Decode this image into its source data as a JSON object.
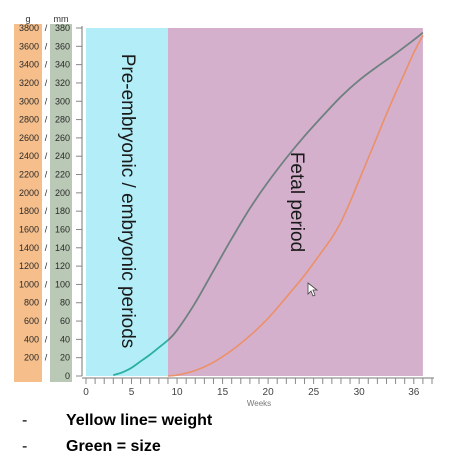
{
  "chart_data": {
    "type": "line",
    "units": {
      "weight": "g",
      "size": "mm"
    },
    "y_weight": {
      "ticks": [
        3800,
        3600,
        3400,
        3200,
        3000,
        2800,
        2600,
        2400,
        2200,
        2000,
        1800,
        1600,
        1400,
        1200,
        1000,
        800,
        600,
        400,
        200
      ],
      "ylim": [
        0,
        3800
      ]
    },
    "y_size": {
      "ticks": [
        380,
        360,
        340,
        320,
        300,
        280,
        260,
        240,
        220,
        200,
        180,
        160,
        140,
        120,
        100,
        80,
        60,
        40,
        20,
        0
      ],
      "ylim": [
        0,
        380
      ]
    },
    "x": {
      "ticks": [
        0,
        5,
        10,
        15,
        20,
        25,
        30,
        36
      ],
      "xlim": [
        0,
        38
      ],
      "label": "Weeks"
    },
    "periods": [
      {
        "label": "Pre-embryonic / embryonic periods",
        "start": 0,
        "end": 9,
        "color": "#b3eef8"
      },
      {
        "label": "Fetal period",
        "start": 9,
        "end": 37,
        "color": "#d4b0cc"
      }
    ],
    "series": [
      {
        "id": "size",
        "axis": "size",
        "color_early": "#2ab0a0",
        "color": "#6f8080",
        "x": [
          3,
          4,
          5,
          6,
          7,
          8,
          9,
          10,
          12,
          14,
          16,
          18,
          20,
          22,
          24,
          26,
          28,
          30,
          32,
          34,
          36,
          37
        ],
        "y": [
          1,
          4,
          9,
          16,
          23,
          31,
          39,
          50,
          80,
          115,
          150,
          183,
          212,
          238,
          262,
          284,
          305,
          323,
          338,
          352,
          367,
          375
        ]
      },
      {
        "id": "weight",
        "axis": "weight",
        "color": "#ec9068",
        "x": [
          9,
          10,
          12,
          14,
          16,
          18,
          20,
          22,
          24,
          26,
          27,
          28,
          29,
          30,
          31,
          32,
          33,
          34,
          35,
          36,
          37
        ],
        "y": [
          0,
          10,
          60,
          150,
          280,
          440,
          630,
          860,
          1100,
          1370,
          1510,
          1680,
          1900,
          2140,
          2380,
          2620,
          2860,
          3090,
          3310,
          3530,
          3720
        ]
      }
    ]
  },
  "legend": {
    "items": [
      {
        "dash": "-",
        "text": "Yellow line= weight"
      },
      {
        "dash": "-",
        "text": "Green = size"
      }
    ]
  }
}
